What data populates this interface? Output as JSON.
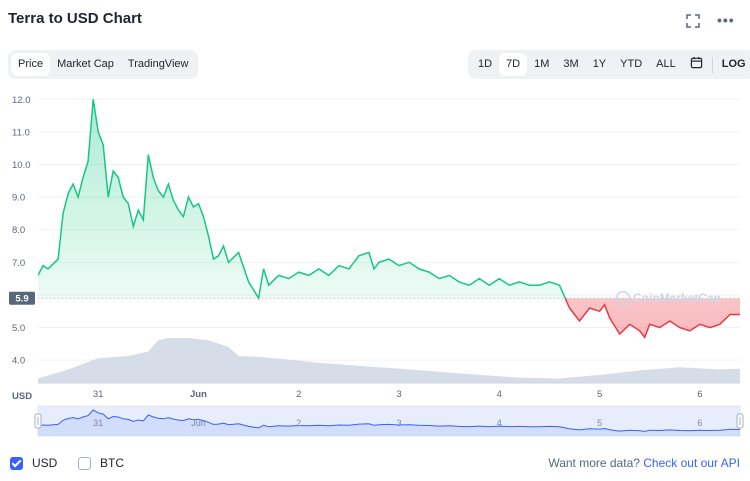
{
  "header": {
    "title": "Terra to USD Chart"
  },
  "tabs_left": [
    {
      "label": "Price",
      "active": true
    },
    {
      "label": "Market Cap",
      "active": false
    },
    {
      "label": "TradingView",
      "active": false
    }
  ],
  "tabs_right": [
    {
      "label": "1D",
      "active": false
    },
    {
      "label": "7D",
      "active": true
    },
    {
      "label": "1M",
      "active": false
    },
    {
      "label": "3M",
      "active": false
    },
    {
      "label": "1Y",
      "active": false
    },
    {
      "label": "YTD",
      "active": false
    },
    {
      "label": "ALL",
      "active": false
    }
  ],
  "log_label": "LOG",
  "chart_data": {
    "type": "line",
    "y_unit_label": "USD",
    "ylim": [
      3.3,
      12.1
    ],
    "yticks": [
      4.0,
      5.0,
      6.0,
      7.0,
      8.0,
      9.0,
      10.0,
      11.0,
      12.0
    ],
    "yticks_labels": [
      "4.0",
      "5.0",
      "",
      "7.0",
      "8.0",
      "9.0",
      "10.0",
      "11.0",
      "12.0"
    ],
    "current_price_label": "5.9",
    "reference_price": 5.9,
    "xlim": [
      0,
      7.0
    ],
    "x_ticks": [
      {
        "x": 0.6,
        "label": "31"
      },
      {
        "x": 1.6,
        "label": "Jun"
      },
      {
        "x": 2.6,
        "label": "2"
      },
      {
        "x": 3.6,
        "label": "3"
      },
      {
        "x": 4.6,
        "label": "4"
      },
      {
        "x": 5.6,
        "label": "5"
      },
      {
        "x": 6.6,
        "label": "6"
      }
    ],
    "grid": true,
    "colors": {
      "up": "#16c784",
      "down": "#ea3943",
      "volume": "#cfd6e4",
      "navigator": "#3861fb"
    },
    "price_series": {
      "x": [
        0.0,
        0.05,
        0.1,
        0.2,
        0.25,
        0.3,
        0.35,
        0.4,
        0.45,
        0.5,
        0.55,
        0.6,
        0.65,
        0.7,
        0.75,
        0.8,
        0.85,
        0.9,
        0.95,
        1.0,
        1.05,
        1.1,
        1.15,
        1.2,
        1.25,
        1.3,
        1.35,
        1.4,
        1.45,
        1.5,
        1.55,
        1.6,
        1.65,
        1.7,
        1.75,
        1.8,
        1.85,
        1.9,
        2.0,
        2.1,
        2.2,
        2.25,
        2.3,
        2.4,
        2.5,
        2.6,
        2.7,
        2.8,
        2.9,
        3.0,
        3.1,
        3.2,
        3.3,
        3.35,
        3.4,
        3.5,
        3.6,
        3.7,
        3.8,
        3.9,
        4.0,
        4.1,
        4.2,
        4.3,
        4.4,
        4.5,
        4.6,
        4.7,
        4.8,
        4.9,
        5.0,
        5.1,
        5.2,
        5.3,
        5.4,
        5.5,
        5.6,
        5.65,
        5.7,
        5.8,
        5.9,
        6.0,
        6.05,
        6.1,
        6.2,
        6.3,
        6.4,
        6.5,
        6.6,
        6.7,
        6.8,
        6.9,
        7.0
      ],
      "y": [
        6.6,
        6.9,
        6.8,
        7.1,
        8.5,
        9.1,
        9.4,
        9.0,
        9.6,
        10.1,
        12.0,
        11.0,
        10.6,
        9.0,
        9.8,
        9.6,
        9.0,
        8.8,
        8.1,
        8.6,
        8.3,
        10.3,
        9.6,
        9.2,
        9.0,
        9.4,
        8.9,
        8.6,
        8.4,
        9.0,
        8.7,
        8.8,
        8.4,
        7.8,
        7.1,
        7.2,
        7.5,
        7.0,
        7.3,
        6.4,
        5.9,
        6.8,
        6.3,
        6.6,
        6.5,
        6.7,
        6.6,
        6.8,
        6.6,
        6.9,
        6.8,
        7.2,
        7.3,
        6.8,
        7.0,
        7.1,
        6.9,
        7.0,
        6.8,
        6.7,
        6.5,
        6.6,
        6.4,
        6.3,
        6.5,
        6.3,
        6.5,
        6.3,
        6.4,
        6.3,
        6.3,
        6.4,
        6.3,
        5.6,
        5.2,
        5.6,
        5.5,
        5.7,
        5.3,
        4.8,
        5.1,
        4.9,
        4.7,
        5.1,
        5.0,
        5.2,
        5.0,
        4.9,
        5.1,
        5.0,
        5.1,
        5.4,
        5.4
      ]
    },
    "volume_series": {
      "x": [
        0.0,
        0.3,
        0.6,
        0.9,
        1.1,
        1.2,
        1.3,
        1.5,
        1.7,
        1.9,
        2.0,
        2.2,
        2.5,
        2.8,
        3.2,
        3.6,
        4.0,
        4.4,
        4.8,
        5.2,
        5.6,
        6.0,
        6.4,
        6.8,
        7.0
      ],
      "y": [
        0.1,
        0.3,
        0.55,
        0.6,
        0.7,
        0.95,
        1.0,
        1.0,
        0.95,
        0.8,
        0.6,
        0.58,
        0.52,
        0.45,
        0.38,
        0.32,
        0.25,
        0.18,
        0.12,
        0.1,
        0.18,
        0.28,
        0.35,
        0.3,
        0.32
      ]
    }
  },
  "footer": {
    "usd_label": "USD",
    "btc_label": "BTC",
    "more_data_text": "Want more data?",
    "api_link": "Check out our API"
  },
  "watermark": "CoinMarketCap"
}
